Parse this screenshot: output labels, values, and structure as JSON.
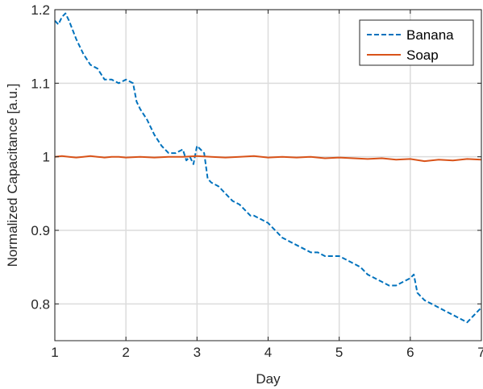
{
  "chart_data": {
    "type": "line",
    "xlabel": "Day",
    "ylabel": "Normalized Capacitance [a.u.]",
    "xlim": [
      1,
      7
    ],
    "ylim": [
      0.75,
      1.2
    ],
    "xticks": [
      1,
      2,
      3,
      4,
      5,
      6,
      7
    ],
    "xtick_labels": [
      "1",
      "2",
      "3",
      "4",
      "5",
      "6",
      "7"
    ],
    "yticks": [
      0.8,
      0.9,
      1.0,
      1.1,
      1.2
    ],
    "ytick_labels": [
      "0.8",
      "0.9",
      "1",
      "1.1",
      "1.2"
    ],
    "grid": true,
    "legend_position": "top-right",
    "series": [
      {
        "name": "Banana",
        "color": "#0072BD",
        "style": "dashed",
        "x": [
          1.0,
          1.05,
          1.1,
          1.15,
          1.2,
          1.3,
          1.4,
          1.5,
          1.6,
          1.7,
          1.8,
          1.9,
          2.0,
          2.1,
          2.15,
          2.2,
          2.3,
          2.4,
          2.5,
          2.6,
          2.7,
          2.8,
          2.85,
          2.9,
          2.95,
          3.0,
          3.05,
          3.1,
          3.15,
          3.2,
          3.3,
          3.4,
          3.5,
          3.6,
          3.7,
          3.75,
          3.8,
          3.9,
          4.0,
          4.1,
          4.2,
          4.3,
          4.4,
          4.5,
          4.6,
          4.7,
          4.8,
          4.9,
          5.0,
          5.1,
          5.2,
          5.3,
          5.4,
          5.5,
          5.6,
          5.7,
          5.8,
          5.9,
          6.0,
          6.05,
          6.1,
          6.2,
          6.3,
          6.4,
          6.5,
          6.6,
          6.7,
          6.8,
          6.9,
          7.0
        ],
        "y": [
          1.185,
          1.18,
          1.19,
          1.195,
          1.185,
          1.16,
          1.14,
          1.125,
          1.12,
          1.105,
          1.105,
          1.1,
          1.105,
          1.1,
          1.075,
          1.065,
          1.05,
          1.03,
          1.015,
          1.005,
          1.005,
          1.01,
          0.995,
          1.0,
          0.99,
          1.015,
          1.01,
          1.005,
          0.97,
          0.965,
          0.96,
          0.95,
          0.94,
          0.935,
          0.925,
          0.92,
          0.92,
          0.915,
          0.91,
          0.9,
          0.89,
          0.885,
          0.88,
          0.875,
          0.87,
          0.87,
          0.865,
          0.865,
          0.865,
          0.86,
          0.855,
          0.85,
          0.84,
          0.835,
          0.83,
          0.825,
          0.825,
          0.83,
          0.835,
          0.84,
          0.815,
          0.805,
          0.8,
          0.795,
          0.79,
          0.785,
          0.78,
          0.775,
          0.785,
          0.795
        ]
      },
      {
        "name": "Soap",
        "color": "#D95319",
        "style": "solid",
        "x": [
          1.0,
          1.1,
          1.2,
          1.3,
          1.4,
          1.5,
          1.6,
          1.7,
          1.8,
          1.9,
          2.0,
          2.2,
          2.4,
          2.6,
          2.8,
          3.0,
          3.2,
          3.4,
          3.6,
          3.8,
          4.0,
          4.2,
          4.4,
          4.6,
          4.8,
          5.0,
          5.2,
          5.4,
          5.6,
          5.8,
          6.0,
          6.2,
          6.4,
          6.6,
          6.8,
          7.0
        ],
        "y": [
          1.0,
          1.001,
          1.0,
          0.999,
          1.0,
          1.001,
          1.0,
          0.999,
          1.0,
          1.0,
          0.999,
          1.0,
          0.999,
          1.0,
          1.0,
          1.001,
          1.0,
          0.999,
          1.0,
          1.001,
          0.999,
          1.0,
          0.999,
          1.0,
          0.998,
          0.999,
          0.998,
          0.997,
          0.998,
          0.996,
          0.997,
          0.994,
          0.996,
          0.995,
          0.997,
          0.996
        ]
      }
    ]
  }
}
